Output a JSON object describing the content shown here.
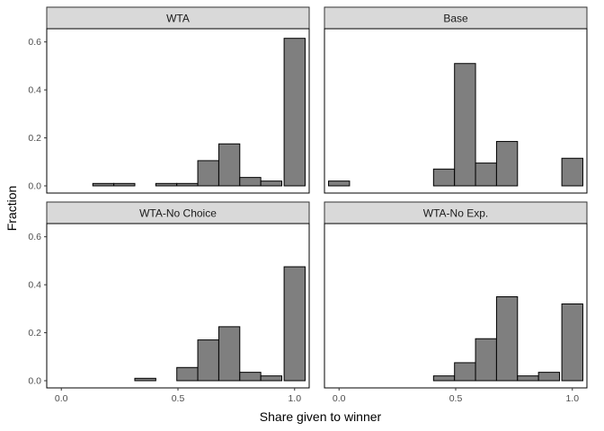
{
  "chart_data": {
    "type": "bar",
    "xlabel": "Share given to winner",
    "ylabel": "Fraction",
    "xlim": [
      -0.0625,
      1.0625
    ],
    "ylim": [
      -0.03,
      0.655
    ],
    "x_ticks": [
      0.0,
      0.5,
      1.0
    ],
    "x_tick_labels": [
      "0.0",
      "0.5",
      "1.0"
    ],
    "y_ticks": [
      0.0,
      0.2,
      0.4,
      0.6
    ],
    "y_tick_labels": [
      "0.0",
      "0.2",
      "0.4",
      "0.6"
    ],
    "bin_centers": [
      0.0,
      0.09,
      0.18,
      0.27,
      0.36,
      0.45,
      0.54,
      0.63,
      0.72,
      0.81,
      0.9,
      1.0
    ],
    "bin_width": 0.09,
    "grid": false,
    "bar_fill": "#7f7f7f",
    "bar_stroke": "#000000",
    "strip_fill": "#d9d9d9",
    "panels": [
      {
        "name": "WTA",
        "values": [
          0.0,
          0.0,
          0.01,
          0.01,
          0.0,
          0.01,
          0.01,
          0.105,
          0.175,
          0.035,
          0.02,
          0.615
        ]
      },
      {
        "name": "Base",
        "values": [
          0.02,
          0.0,
          0.0,
          0.0,
          0.0,
          0.07,
          0.51,
          0.095,
          0.185,
          0.0,
          0.0,
          0.115
        ]
      },
      {
        "name": "WTA-No Choice",
        "values": [
          0.0,
          0.0,
          0.0,
          0.0,
          0.01,
          0.0,
          0.055,
          0.17,
          0.225,
          0.035,
          0.02,
          0.475
        ]
      },
      {
        "name": "WTA-No Exp.",
        "values": [
          0.0,
          0.0,
          0.0,
          0.0,
          0.0,
          0.02,
          0.075,
          0.175,
          0.35,
          0.02,
          0.035,
          0.32
        ]
      }
    ]
  }
}
